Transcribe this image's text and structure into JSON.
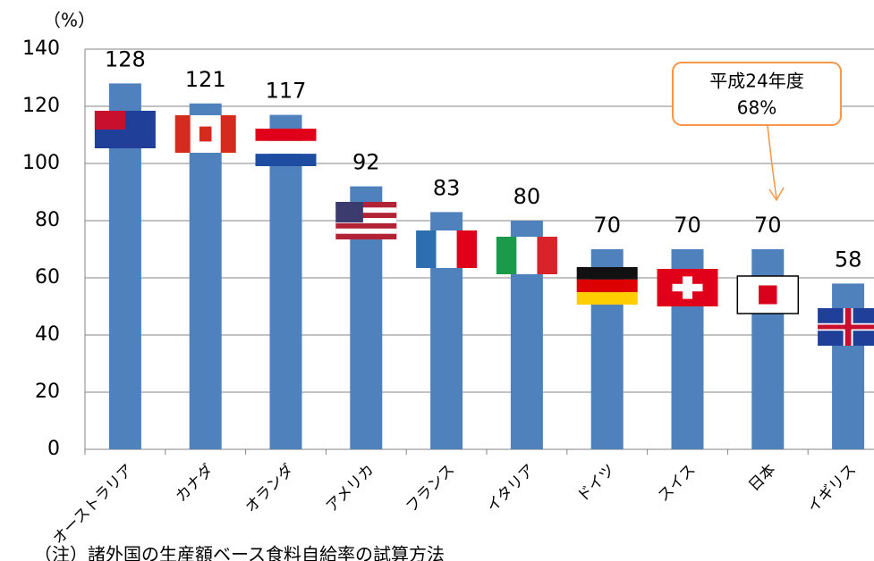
{
  "chart_data": {
    "type": "bar",
    "y_unit_label": "（%）",
    "categories": [
      "オーストラリア",
      "カナダ",
      "オランダ",
      "アメリカ",
      "フランス",
      "イタリア",
      "ドイツ",
      "スイス",
      "日本",
      "イギリス"
    ],
    "values": [
      128,
      121,
      117,
      92,
      83,
      80,
      70,
      70,
      70,
      58
    ],
    "color": "#4f81bd",
    "ylim": [
      0,
      140
    ],
    "yticks": [
      0,
      20,
      40,
      60,
      80,
      100,
      120,
      140
    ],
    "grid": true,
    "annotation": {
      "line1": "平成24年度",
      "line2": "68%"
    },
    "note": "（注）諸外国の生産額ベース食料自給率の試算方法"
  }
}
